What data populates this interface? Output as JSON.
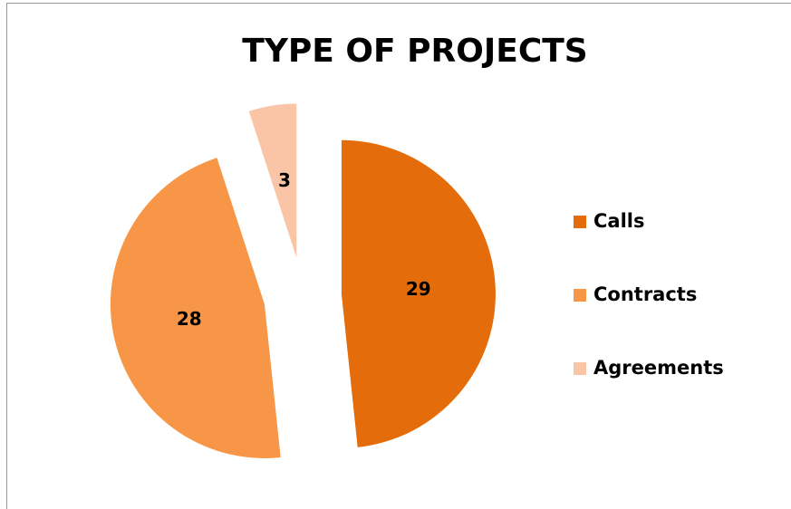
{
  "chart_data": {
    "type": "pie",
    "title": "TYPE OF PROJECTS",
    "categories": [
      "Calls",
      "Contracts",
      "Agreements"
    ],
    "values": [
      29,
      28,
      3
    ],
    "colors": [
      "#e46c0a",
      "#f79646",
      "#fac4a6"
    ],
    "exploded": true,
    "legend": "right"
  }
}
